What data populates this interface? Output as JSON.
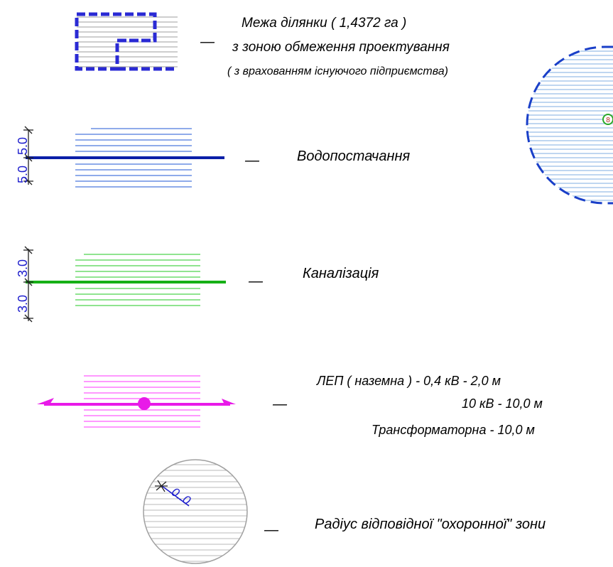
{
  "legend": {
    "boundary": {
      "dash": "—",
      "line1": "Межа  ділянки   ( 1,4372 га )",
      "line2": "з зоною обмеження  проектування",
      "line3": "( з врахованням існуючого підприємства)",
      "color": "#2a2ad4"
    },
    "water": {
      "dash": "—",
      "label": "Водопостачання",
      "dim_top": "5.0",
      "dim_bottom": "5.0",
      "color": "#1f57d6",
      "line_color": "#0b1fa8"
    },
    "sewer": {
      "dash": "—",
      "label": "Каналізація",
      "dim_top": "3.0",
      "dim_bottom": "3.0",
      "color": "#22c922",
      "line_color": "#16b016"
    },
    "power": {
      "dash": "—",
      "line1": "ЛЕП  ( наземна )  - 0,4 кВ   - 2,0 м",
      "line2": "10 кВ   - 10,0 м",
      "line3": "Трансформаторна  - 10,0 м",
      "color": "#ff33ff",
      "line_color": "#e81ae8"
    },
    "radius": {
      "dash": "—",
      "label": "Радіус  відповідної  \"охоронної\"  зони",
      "dim": "0..0",
      "color": "#9a9a9a"
    },
    "map_fragment": {
      "marker": "8",
      "fill_color": "#7faee0",
      "border_color": "#1a3fc8"
    }
  }
}
